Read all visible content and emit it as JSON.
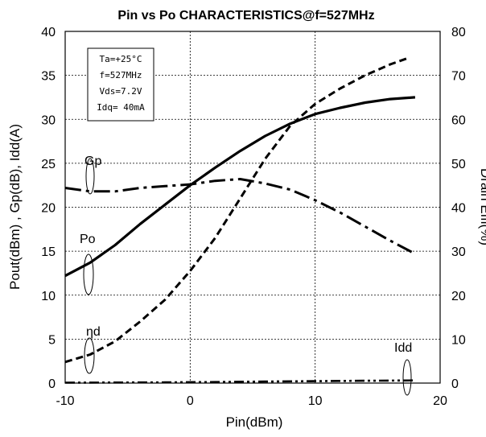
{
  "chart_data": {
    "type": "line",
    "title": "Pin vs Po  CHARACTERISTICS@f=527MHz",
    "xlabel": "Pin(dBm)",
    "ylabel": "Pout(dBm) , Gp(dB), Idd(A)",
    "y2label": "Drain Effi(%)",
    "xlim": [
      -10,
      20
    ],
    "ylim": [
      0,
      40
    ],
    "y2lim": [
      0,
      80
    ],
    "x_ticks": [
      "-10",
      "0",
      "10",
      "20"
    ],
    "y_ticks": [
      "0",
      "5",
      "10",
      "15",
      "20",
      "25",
      "30",
      "35",
      "40"
    ],
    "y2_ticks": [
      "0",
      "10",
      "20",
      "30",
      "40",
      "50",
      "60",
      "70",
      "80"
    ],
    "grid": true,
    "conditions": [
      "Ta=+25°C",
      "f=527MHz",
      "Vds=7.2V",
      "Idq= 40mA"
    ],
    "series": [
      {
        "name": "Po",
        "axis": "left",
        "style": "solid",
        "x": [
          -10,
          -8,
          -6,
          -4,
          -2,
          0,
          2,
          4,
          6,
          8,
          10,
          12,
          14,
          16,
          18
        ],
        "y": [
          12.2,
          13.7,
          15.7,
          18.1,
          20.3,
          22.5,
          24.5,
          26.4,
          28.1,
          29.5,
          30.6,
          31.3,
          31.9,
          32.3,
          32.5
        ]
      },
      {
        "name": "Gp",
        "axis": "left",
        "style": "dash-dot",
        "x": [
          -10,
          -8,
          -6,
          -4,
          -2,
          0,
          2,
          4,
          6,
          8,
          10,
          12,
          14,
          16,
          18
        ],
        "y": [
          22.2,
          21.8,
          21.8,
          22.2,
          22.4,
          22.6,
          23.0,
          23.2,
          22.7,
          22.0,
          20.8,
          19.4,
          17.8,
          16.2,
          14.7
        ]
      },
      {
        "name": "ηd",
        "axis": "right",
        "style": "dashed",
        "x": [
          -10,
          -8,
          -6,
          -4,
          -2,
          0,
          2,
          4,
          6,
          8,
          10,
          12,
          14,
          16,
          17.5
        ],
        "y": [
          4.8,
          6.5,
          9.5,
          14,
          19,
          25.5,
          33,
          42,
          51,
          58.5,
          63.5,
          67,
          70,
          72.5,
          74
        ]
      },
      {
        "name": "Idd",
        "axis": "left",
        "style": "dash-dot-dot",
        "x": [
          -10,
          -6,
          -2,
          2,
          6,
          10,
          14,
          18
        ],
        "y": [
          0.05,
          0.06,
          0.08,
          0.12,
          0.17,
          0.22,
          0.27,
          0.3
        ]
      }
    ]
  }
}
